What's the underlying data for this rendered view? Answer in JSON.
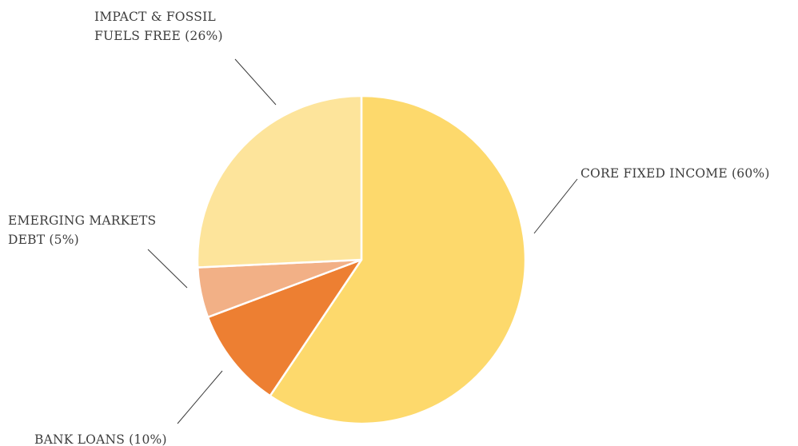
{
  "chart_data": {
    "type": "pie",
    "title": "",
    "slices": [
      {
        "label": "CORE FIXED INCOME",
        "value": 60,
        "label_lines": [
          "CORE FIXED INCOME (60%)"
        ],
        "color": "#fdd96c"
      },
      {
        "label": "BANK LOANS",
        "value": 10,
        "label_lines": [
          "BANK LOANS (10%)"
        ],
        "color": "#ed7f32"
      },
      {
        "label": "EMERGING MARKETS DEBT",
        "value": 5,
        "label_lines": [
          "EMERGING MARKETS",
          "DEBT (5%)"
        ],
        "color": "#f2b086"
      },
      {
        "label": "IMPACT & FOSSIL FUELS FREE",
        "value": 26,
        "label_lines": [
          "IMPACT & FOSSIL",
          "FUELS FREE (26%)"
        ],
        "color": "#fde49b"
      }
    ],
    "legend": "none (direct labels with leader lines)"
  }
}
